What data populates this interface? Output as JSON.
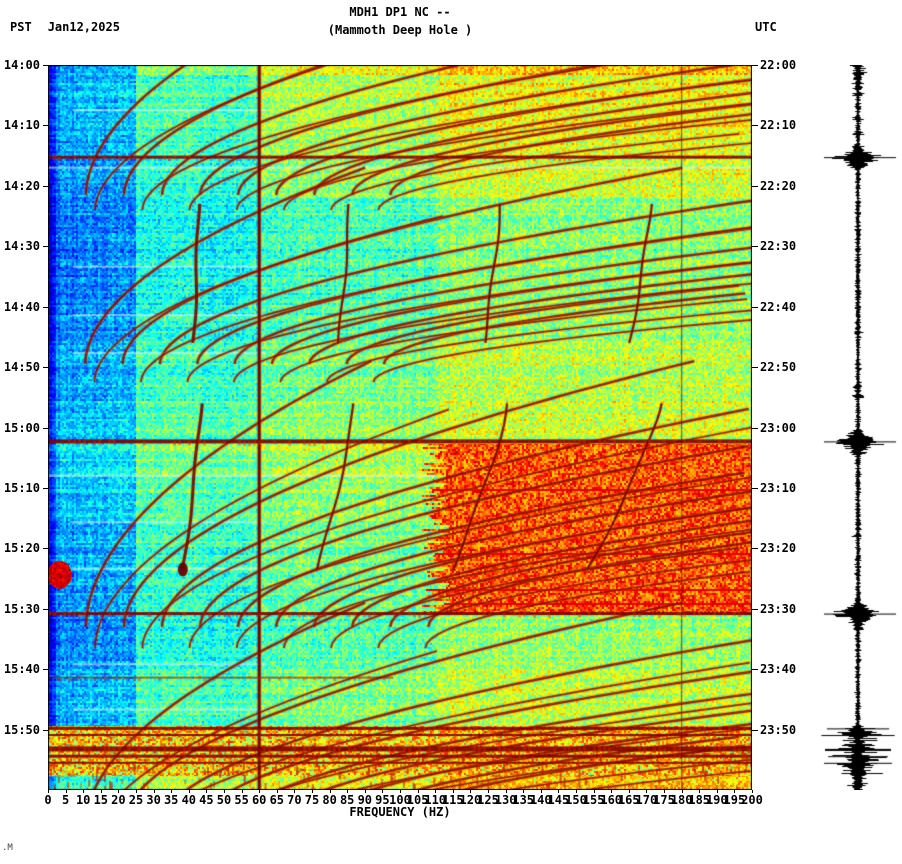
{
  "header": {
    "tz_left": "PST",
    "date": "Jan12,2025",
    "title_line1": "MDH1 DP1 NC --",
    "title_line2": "(Mammoth Deep Hole )",
    "tz_right": "UTC"
  },
  "footer_mark": ".M",
  "chart_data": {
    "type": "heatmap",
    "subtype": "seismic spectrogram with seismogram trace",
    "station_code": "MDH1 DP1 NC --",
    "station_name": "Mammoth Deep Hole",
    "date": "Jan12,2025",
    "timezone_left": "PST",
    "timezone_right": "UTC",
    "xlabel": "FREQUENCY (HZ)",
    "x_range_hz": [
      0,
      200
    ],
    "x_tick_step_hz": 5,
    "x_tick_labels": [
      "0",
      "5",
      "10",
      "15",
      "20",
      "25",
      "30",
      "35",
      "40",
      "45",
      "50",
      "55",
      "60",
      "65",
      "70",
      "75",
      "80",
      "85",
      "90",
      "95",
      "100",
      "105",
      "110",
      "115",
      "120",
      "125",
      "130",
      "135",
      "140",
      "145",
      "150",
      "155",
      "160",
      "165",
      "170",
      "175",
      "180",
      "185",
      "190",
      "195",
      "200"
    ],
    "time_span_minutes": 120,
    "time_tick_interval_minutes": 10,
    "left_time_labels": [
      "14:00",
      "14:10",
      "14:20",
      "14:30",
      "14:40",
      "14:50",
      "15:00",
      "15:10",
      "15:20",
      "15:30",
      "15:40",
      "15:50"
    ],
    "right_time_labels": [
      "22:00",
      "22:10",
      "22:20",
      "22:30",
      "22:40",
      "22:50",
      "23:00",
      "23:10",
      "23:20",
      "23:30",
      "23:40",
      "23:50"
    ],
    "colormap": "jet",
    "grid": false,
    "features": {
      "powerline_hz": 60,
      "overtone_line_hz": 180,
      "broadband_lines": [
        {
          "time_pst": "14:15",
          "min": 15.25,
          "h": 3
        },
        {
          "time_pst": "15:02",
          "min": 62.3,
          "h": 4
        },
        {
          "time_pst": "15:31",
          "min": 90.8,
          "h": 3
        },
        {
          "time_pst": "15:41",
          "min": 101.4,
          "h": 2,
          "max_hz": 98,
          "a": 0.55
        },
        {
          "time_pst": "15:50",
          "min": 109.8,
          "h": 3
        },
        {
          "time_pst": "15:51",
          "min": 110.9,
          "h": 2
        },
        {
          "time_pst": "15:53",
          "min": 113.2,
          "h": 5
        },
        {
          "time_pst": "15:54",
          "min": 114.4,
          "h": 3
        },
        {
          "time_pst": "15:55",
          "min": 115.5,
          "h": 2
        }
      ],
      "hf_tremor_band": {
        "start_min": 62.6,
        "end_min": 91.0,
        "min_hz": 108,
        "max_hz": 200,
        "note": "broadband high-frequency noise 15:02-15:31"
      },
      "noisy_band": {
        "start_min": 109.3,
        "end_min": 117.6,
        "note": "strong broadband noise 15:49-15:58"
      },
      "low_freq_blob": {
        "center_min": 84.3,
        "center_hz": 3.2,
        "note": "low-frequency event near 15:24"
      },
      "harmonic_arc_families": [
        {
          "start_min": -16,
          "vertex_min": 21.5,
          "base_hz": 10.8,
          "harmonics": 9,
          "w": 2.4
        },
        {
          "start_min": -6,
          "vertex_min": 24,
          "base_hz": 13.4,
          "harmonics": 7,
          "w": 1.7
        },
        {
          "start_min": 17,
          "vertex_min": 49.5,
          "base_hz": 10.6,
          "harmonics": 9,
          "w": 2.4
        },
        {
          "start_min": 25,
          "vertex_min": 52.5,
          "base_hz": 13.2,
          "harmonics": 7,
          "w": 1.7
        },
        {
          "start_min": 49,
          "vertex_min": 93,
          "base_hz": 10.8,
          "harmonics": 10,
          "w": 2.4
        },
        {
          "start_min": 57,
          "vertex_min": 96.5,
          "base_hz": 13.4,
          "harmonics": 8,
          "w": 1.7
        },
        {
          "start_min": 89,
          "vertex_min": 126,
          "base_hz": 10.6,
          "harmonics": 9,
          "w": 2.4
        },
        {
          "start_min": 97,
          "vertex_min": 129,
          "base_hz": 13.0,
          "harmonics": 7,
          "w": 1.7
        }
      ],
      "gliding_harmonics": [
        {
          "start_min": 23,
          "end_min": 46,
          "hz_start": 42.8,
          "hz_end": 41.3,
          "harmonics": 4,
          "w": 3
        },
        {
          "start_min": 56,
          "end_min": 83.5,
          "hz_start": 43.5,
          "hz_end": 38.3,
          "harmonics": 4,
          "w": 3,
          "end_blob": true
        }
      ],
      "pale_stripes_min": [
        7.3,
        16.8,
        33.2,
        41.2,
        47.5,
        67.8,
        75.5,
        83.2,
        99.0,
        106.5
      ],
      "seismogram_line_minutes": [
        15.25,
        62.3,
        90.8
      ]
    },
    "seismogram": {
      "position": "right",
      "color": "#000000",
      "event_times_pst": [
        "14:00-14:03",
        "14:15",
        "15:02",
        "15:31",
        "15:50-15:57"
      ]
    }
  }
}
